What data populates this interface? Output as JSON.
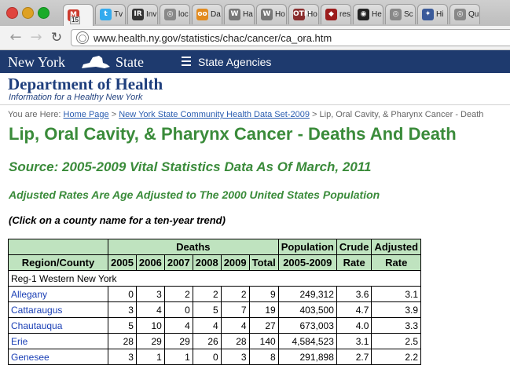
{
  "browser": {
    "tabs": [
      {
        "label": "",
        "favicon": "M",
        "color": "#cc3b2e",
        "badge": "15"
      },
      {
        "label": "Tv",
        "favicon": "t",
        "color": "#33aaee"
      },
      {
        "label": "Inv",
        "favicon": "IR",
        "color": "#333333"
      },
      {
        "label": "loc",
        "favicon": "◎",
        "color": "#888888"
      },
      {
        "label": "Da",
        "favicon": "oo",
        "color": "#e28b1f"
      },
      {
        "label": "Ha",
        "favicon": "W",
        "color": "#777777"
      },
      {
        "label": "Ho",
        "favicon": "W",
        "color": "#777777"
      },
      {
        "label": "Ho",
        "favicon": "OTM",
        "color": "#8a2e2e"
      },
      {
        "label": "res",
        "favicon": "◆",
        "color": "#9b1c1c"
      },
      {
        "label": "He",
        "favicon": "◉",
        "color": "#222222"
      },
      {
        "label": "Sc",
        "favicon": "◎",
        "color": "#888888"
      },
      {
        "label": "Hi",
        "favicon": "✦",
        "color": "#3a5a9a"
      },
      {
        "label": "Qu",
        "favicon": "◎",
        "color": "#888888"
      }
    ],
    "url": "www.health.ny.gov/statistics/chac/cancer/ca_ora.htm"
  },
  "state_bar": {
    "left": "New York",
    "right": "State",
    "menu_label": "State Agencies"
  },
  "department": {
    "title": "Department of Health",
    "tagline": "Information for a Healthy New York"
  },
  "breadcrumb": {
    "prefix": "You are Here:",
    "home": "Home Page",
    "sep1": ">",
    "dataset": "New York State Community Health Data Set-2009",
    "sep2": ">",
    "current": "Lip, Oral Cavity, & Pharynx Cancer - Death"
  },
  "page": {
    "title": "Lip, Oral Cavity, & Pharynx Cancer - Deaths And Death",
    "source": "Source: 2005-2009 Vital Statistics Data As Of March, 2011",
    "adjusted_note": "Adjusted Rates Are Age Adjusted to The 2000 United States Population",
    "click_note": "(Click on a county name for a ten-year trend)"
  },
  "table": {
    "group_headers": {
      "deaths": "Deaths",
      "population": "Population",
      "crude": "Crude",
      "adjusted": "Adjusted"
    },
    "columns": [
      "Region/County",
      "2005",
      "2006",
      "2007",
      "2008",
      "2009",
      "Total",
      "2005-2009",
      "Rate",
      "Rate"
    ],
    "region_label": "Reg-1 Western New York",
    "rows": [
      {
        "county": "Allegany",
        "y2005": "0",
        "y2006": "3",
        "y2007": "2",
        "y2008": "2",
        "y2009": "2",
        "total": "9",
        "population": "249,312",
        "crude": "3.6",
        "adjusted": "3.1"
      },
      {
        "county": "Cattaraugus",
        "y2005": "3",
        "y2006": "4",
        "y2007": "0",
        "y2008": "5",
        "y2009": "7",
        "total": "19",
        "population": "403,500",
        "crude": "4.7",
        "adjusted": "3.9"
      },
      {
        "county": "Chautauqua",
        "y2005": "5",
        "y2006": "10",
        "y2007": "4",
        "y2008": "4",
        "y2009": "4",
        "total": "27",
        "population": "673,003",
        "crude": "4.0",
        "adjusted": "3.3"
      },
      {
        "county": "Erie",
        "y2005": "28",
        "y2006": "29",
        "y2007": "29",
        "y2008": "26",
        "y2009": "28",
        "total": "140",
        "population": "4,584,523",
        "crude": "3.1",
        "adjusted": "2.5"
      },
      {
        "county": "Genesee",
        "y2005": "3",
        "y2006": "1",
        "y2007": "1",
        "y2008": "0",
        "y2009": "3",
        "total": "8",
        "population": "291,898",
        "crude": "2.7",
        "adjusted": "2.2"
      }
    ]
  },
  "colors": {
    "heading_green": "#3a8b3a",
    "header_bg": "#bfe3bf",
    "state_bar": "#1e3a6e",
    "link": "#1a3fb5"
  }
}
